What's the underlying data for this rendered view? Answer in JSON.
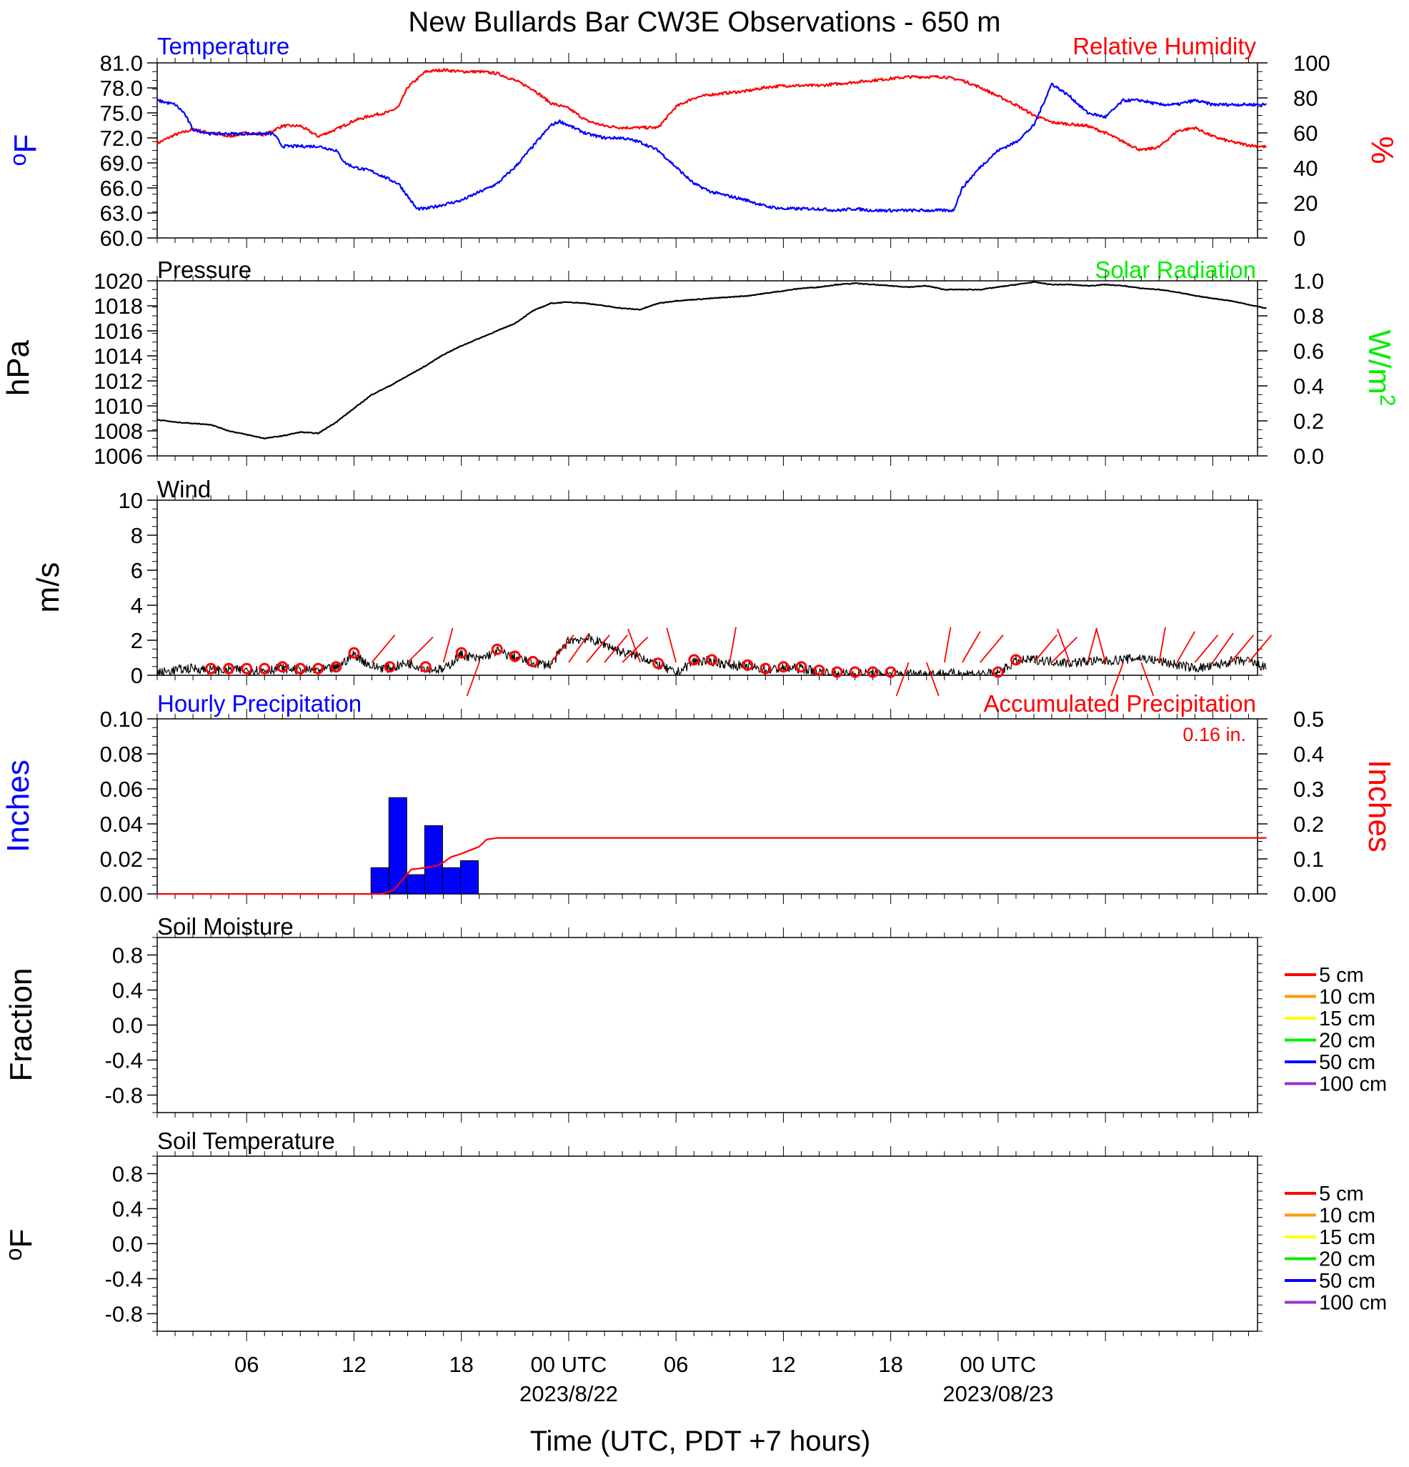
{
  "title": "New Bullards Bar CW3E Observations - 650 m",
  "x_axis": {
    "label": "Time (UTC, PDT +7 hours)",
    "ticks": [
      "06",
      "12",
      "18",
      "00 UTC",
      "06",
      "12",
      "18",
      "00 UTC"
    ],
    "dates": [
      "2023/8/22",
      "2023/08/23"
    ]
  },
  "panels": {
    "temperature": {
      "left_title": "Temperature",
      "right_title": "Relative Humidity",
      "left_unit": "oF",
      "right_unit": "%",
      "left_ticks": [
        "81.0",
        "78.0",
        "75.0",
        "72.0",
        "69.0",
        "66.0",
        "63.0",
        "60.0"
      ],
      "right_ticks": [
        "100",
        "80",
        "60",
        "40",
        "20",
        "0"
      ]
    },
    "pressure": {
      "left_title": "Pressure",
      "right_title": "Solar Radiation",
      "left_unit": "hPa",
      "right_unit": "W/m2",
      "left_ticks": [
        "1020",
        "1018",
        "1016",
        "1014",
        "1012",
        "1010",
        "1008",
        "1006"
      ],
      "right_ticks": [
        "1.0",
        "0.8",
        "0.6",
        "0.4",
        "0.2",
        "0.0"
      ]
    },
    "wind": {
      "left_title": "Wind",
      "left_unit": "m/s",
      "left_ticks": [
        "10",
        "8",
        "6",
        "4",
        "2",
        "0"
      ]
    },
    "precip": {
      "left_title": "Hourly Precipitation",
      "right_title": "Accumulated Precipitation",
      "total_label": "0.16 in.",
      "left_unit": "Inches",
      "right_unit": "Inches",
      "left_ticks": [
        "0.10",
        "0.08",
        "0.06",
        "0.04",
        "0.02",
        "0.00"
      ],
      "right_ticks": [
        "0.5",
        "0.4",
        "0.3",
        "0.2",
        "0.1",
        "0.00"
      ]
    },
    "soil_moisture": {
      "left_title": "Soil Moisture",
      "left_unit": "Fraction",
      "left_ticks": [
        "0.8",
        "0.4",
        "0.0",
        "-0.4",
        "-0.8"
      ],
      "legend": [
        "5 cm",
        "10 cm",
        "15 cm",
        "20 cm",
        "50 cm",
        "100 cm"
      ]
    },
    "soil_temperature": {
      "left_title": "Soil Temperature",
      "left_unit": "oF",
      "left_ticks": [
        "0.8",
        "0.4",
        "0.0",
        "-0.4",
        "-0.8"
      ],
      "legend": [
        "5 cm",
        "10 cm",
        "15 cm",
        "20 cm",
        "50 cm",
        "100 cm"
      ]
    }
  },
  "colors": {
    "temperature": "#0000ff",
    "humidity": "#ff0000",
    "pressure": "#000000",
    "solar": "#00ee00",
    "wind": "#000000",
    "hourly_precip": "#0000ff",
    "accum_precip": "#ff0000",
    "soil_legend": [
      "#ff0000",
      "#ff9900",
      "#ffff00",
      "#00ee00",
      "#0000ff",
      "#9933cc"
    ]
  },
  "chart_data": [
    {
      "type": "line",
      "title": "Temperature",
      "x_unit": "hours since 2023-08-21 01 UTC",
      "ylabel": "oF",
      "ylim": [
        60,
        81
      ],
      "series": [
        {
          "name": "Temperature",
          "x": [
            0,
            1,
            1.5,
            2,
            3,
            4,
            5,
            6,
            6.5,
            7,
            8,
            9,
            10,
            10.5,
            11,
            12,
            13,
            13.5,
            14,
            14.5,
            15,
            16,
            17,
            18,
            19,
            20,
            21,
            22,
            22.5,
            23,
            24,
            25,
            26,
            27,
            28,
            29,
            30,
            31,
            32,
            33,
            34,
            35,
            36,
            37,
            37.5,
            38,
            39,
            40,
            41,
            42,
            43,
            44,
            44.5,
            45,
            46,
            47,
            48,
            48.5,
            49,
            50,
            51,
            52,
            53,
            54,
            55,
            56,
            57,
            58,
            59,
            60,
            61,
            62
          ],
          "y": [
            76.5,
            76,
            75,
            73,
            72.5,
            72.5,
            72.5,
            72.5,
            72.5,
            71,
            71,
            71,
            70.5,
            69,
            68.5,
            68,
            67,
            66.5,
            65,
            63.5,
            63.5,
            64,
            64.5,
            65.5,
            66.5,
            68.5,
            71,
            73.5,
            74,
            73.5,
            72.5,
            72,
            72,
            71.5,
            70.5,
            68.5,
            66.5,
            65.5,
            65,
            64.5,
            63.8,
            63.5,
            63.5,
            63.5,
            63.4,
            63.3,
            63.5,
            63.3,
            63.3,
            63.3,
            63.3,
            63.3,
            63.3,
            66,
            68.5,
            70.5,
            71.5,
            72.5,
            73.5,
            78.5,
            77,
            75,
            74.5,
            76.5,
            76.5,
            76,
            76,
            76.5,
            76,
            76,
            76,
            76
          ]
        }
      ]
    },
    {
      "type": "line",
      "title": "Relative Humidity",
      "x_unit": "hours since 2023-08-21 01 UTC",
      "ylabel": "%",
      "ylim": [
        0,
        100
      ],
      "series": [
        {
          "name": "Relative Humidity",
          "x": [
            0,
            1,
            2,
            3,
            4,
            5,
            6,
            7,
            8,
            9,
            10,
            11,
            12,
            13,
            13.5,
            14,
            15,
            16,
            17,
            18,
            19,
            20,
            21,
            22,
            23,
            24,
            25,
            26,
            27,
            28,
            29,
            30,
            31,
            32,
            33,
            34,
            35,
            36,
            37,
            38,
            39,
            40,
            41,
            42,
            43,
            44,
            45,
            46,
            47,
            48,
            49,
            50,
            51,
            52,
            53,
            54,
            55,
            56,
            57,
            58,
            59,
            60,
            61,
            62
          ],
          "y": [
            54,
            59,
            62,
            60,
            58,
            60,
            59,
            64,
            64,
            58,
            62,
            67,
            70,
            72,
            75,
            86,
            95,
            96,
            95,
            95,
            94,
            90,
            85,
            77,
            74,
            67,
            64,
            63,
            63,
            63,
            75,
            80,
            82,
            83,
            84,
            86,
            87,
            87,
            87,
            88,
            89,
            90,
            91,
            92,
            92,
            92,
            90,
            86,
            81,
            76,
            70,
            66,
            65,
            64,
            60,
            55,
            50,
            52,
            61,
            63,
            58,
            55,
            53,
            52
          ]
        }
      ]
    },
    {
      "type": "line",
      "title": "Pressure",
      "x_unit": "hours since 2023-08-21 01 UTC",
      "ylabel": "hPa",
      "ylim": [
        1006,
        1020
      ],
      "series": [
        {
          "name": "Pressure",
          "x": [
            0,
            1,
            2,
            3,
            4,
            5,
            6,
            7,
            8,
            9,
            10,
            11,
            12,
            13,
            14,
            15,
            16,
            17,
            18,
            19,
            20,
            21,
            22,
            23,
            24,
            25,
            26,
            27,
            28,
            29,
            30,
            31,
            32,
            33,
            34,
            35,
            36,
            37,
            38,
            39,
            40,
            41,
            42,
            43,
            44,
            45,
            46,
            47,
            48,
            49,
            50,
            51,
            52,
            53,
            54,
            55,
            56,
            57,
            58,
            59,
            60,
            61,
            62
          ],
          "y": [
            1008.9,
            1008.7,
            1008.6,
            1008.5,
            1008.0,
            1007.7,
            1007.4,
            1007.6,
            1007.9,
            1007.8,
            1008.7,
            1009.8,
            1010.9,
            1011.6,
            1012.4,
            1013.2,
            1014.1,
            1014.8,
            1015.4,
            1016.0,
            1016.6,
            1017.6,
            1018.2,
            1018.3,
            1018.2,
            1018.0,
            1017.8,
            1017.7,
            1018.2,
            1018.4,
            1018.5,
            1018.6,
            1018.7,
            1018.8,
            1019.0,
            1019.2,
            1019.4,
            1019.5,
            1019.7,
            1019.8,
            1019.7,
            1019.6,
            1019.5,
            1019.6,
            1019.3,
            1019.3,
            1019.3,
            1019.5,
            1019.7,
            1019.9,
            1019.7,
            1019.7,
            1019.6,
            1019.7,
            1019.6,
            1019.4,
            1019.3,
            1019.1,
            1018.8,
            1018.6,
            1018.4,
            1018.1,
            1017.8
          ]
        }
      ]
    },
    {
      "type": "line",
      "title": "Wind",
      "x_unit": "hours since 2023-08-21 01 UTC",
      "ylabel": "m/s",
      "ylim": [
        0,
        10
      ],
      "series": [
        {
          "name": "Wind speed",
          "x": [
            0,
            1,
            2,
            3,
            4,
            5,
            6,
            7,
            8,
            9,
            10,
            11,
            12,
            13,
            14,
            15,
            16,
            17,
            18,
            19,
            20,
            21,
            22,
            23,
            24,
            25,
            26,
            27,
            28,
            29,
            30,
            31,
            32,
            33,
            34,
            35,
            36,
            37,
            38,
            39,
            40,
            41,
            42,
            43,
            44,
            45,
            46,
            47,
            48,
            49,
            50,
            51,
            52,
            53,
            54,
            55,
            56,
            57,
            58,
            59,
            60,
            61,
            62
          ],
          "y": [
            0.1,
            0.3,
            0.4,
            0.3,
            0.3,
            0.3,
            0.3,
            0.4,
            0.3,
            0.3,
            0.4,
            1.2,
            0.5,
            0.4,
            0.7,
            0.4,
            0.3,
            1.2,
            0.9,
            1.4,
            1.0,
            0.7,
            0.6,
            2.0,
            2.1,
            1.8,
            1.3,
            1.1,
            0.6,
            0.1,
            0.8,
            0.8,
            0.6,
            0.5,
            0.3,
            0.4,
            0.4,
            0.2,
            0.1,
            0.1,
            0.1,
            0.1,
            0.1,
            0.1,
            0.1,
            0.1,
            0.1,
            0.1,
            0.8,
            0.9,
            0.8,
            0.7,
            0.8,
            0.8,
            0.9,
            1.0,
            0.8,
            0.6,
            0.4,
            0.5,
            0.8,
            0.8,
            0.4
          ]
        }
      ],
      "barb_hours": [
        3,
        4,
        5,
        6,
        7,
        8,
        9,
        10,
        11,
        12,
        13,
        14,
        15,
        16,
        17,
        18,
        19,
        20,
        21,
        22,
        23,
        24,
        25,
        26,
        27,
        28,
        29,
        30,
        31,
        32,
        33,
        34,
        35,
        36,
        37,
        38,
        39,
        40,
        41,
        42,
        43,
        44,
        45,
        46,
        47,
        48,
        49,
        50,
        51,
        52,
        53,
        54,
        55,
        56,
        57,
        58,
        59,
        60,
        61
      ],
      "calm_hours": [
        3,
        4,
        5,
        6,
        7,
        8,
        9,
        10,
        11,
        13,
        15,
        17,
        19,
        20,
        21,
        28,
        30,
        31,
        33,
        34,
        35,
        36,
        37,
        38,
        39,
        40,
        41,
        47,
        48
      ]
    },
    {
      "type": "bar",
      "title": "Hourly Precipitation",
      "x_unit": "hours since 2023-08-21 01 UTC",
      "ylabel": "Inches",
      "ylim": [
        0,
        0.1
      ],
      "categories": [
        12,
        13,
        14,
        15,
        16,
        17,
        18
      ],
      "values": [
        0.015,
        0.055,
        0.011,
        0.039,
        0.015,
        0.019,
        0.0
      ]
    },
    {
      "type": "line",
      "title": "Accumulated Precipitation",
      "x_unit": "hours since 2023-08-21 01 UTC",
      "ylabel": "Inches",
      "ylim": [
        0,
        0.5
      ],
      "series": [
        {
          "name": "Accumulated Precipitation",
          "x": [
            0,
            12.5,
            13.2,
            13.7,
            14.2,
            15,
            15.6,
            16,
            16.4,
            17,
            17.5,
            18,
            18.4,
            19,
            62
          ],
          "y": [
            0,
            0,
            0.01,
            0.04,
            0.07,
            0.075,
            0.08,
            0.09,
            0.105,
            0.115,
            0.125,
            0.135,
            0.155,
            0.16,
            0.16
          ]
        }
      ]
    },
    {
      "type": "line",
      "title": "Soil Moisture",
      "ylabel": "Fraction",
      "ylim": [
        -1,
        1
      ],
      "series": []
    },
    {
      "type": "line",
      "title": "Soil Temperature",
      "ylabel": "oF",
      "ylim": [
        -1,
        1
      ],
      "series": []
    }
  ]
}
